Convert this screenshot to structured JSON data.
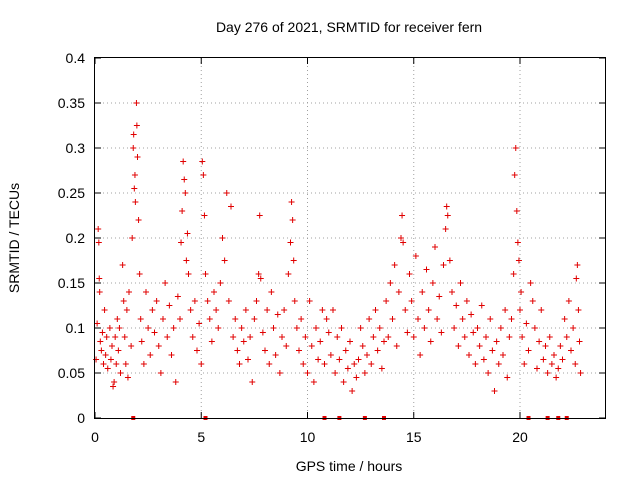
{
  "chart_data": {
    "type": "scatter",
    "title": "Day 276 of 2021, SRMTID for receiver fern",
    "xlabel": "GPS time / hours",
    "ylabel": "SRMTID / TECUs",
    "xlim": [
      0,
      24
    ],
    "ylim": [
      0,
      0.4
    ],
    "x_ticks": [
      0,
      5,
      10,
      15,
      20
    ],
    "x_tick_labels": [
      "0",
      "5",
      "10",
      "15",
      "20"
    ],
    "y_ticks": [
      0,
      0.05,
      0.1,
      0.15,
      0.2,
      0.25,
      0.3,
      0.35,
      0.4
    ],
    "y_tick_labels": [
      "0",
      "0.05",
      "0.1",
      "0.15",
      "0.2",
      "0.25",
      "0.3",
      "0.35",
      "0.4"
    ],
    "grid": true,
    "marker": "+",
    "color": "#e00000",
    "series": [
      {
        "name": "SRMTID",
        "points": [
          [
            0.05,
            0.065
          ],
          [
            0.1,
            0.105
          ],
          [
            0.15,
            0.21
          ],
          [
            0.18,
            0.195
          ],
          [
            0.2,
            0.155
          ],
          [
            0.22,
            0.14
          ],
          [
            0.25,
            0.085
          ],
          [
            0.3,
            0.075
          ],
          [
            0.35,
            0.095
          ],
          [
            0.4,
            0.06
          ],
          [
            0.45,
            0.12
          ],
          [
            0.5,
            0.07
          ],
          [
            0.55,
            0.09
          ],
          [
            0.6,
            0.055
          ],
          [
            0.7,
            0.1
          ],
          [
            0.75,
            0.065
          ],
          [
            0.8,
            0.08
          ],
          [
            0.85,
            0.035
          ],
          [
            0.9,
            0.04
          ],
          [
            0.95,
            0.09
          ],
          [
            1.0,
            0.06
          ],
          [
            1.05,
            0.11
          ],
          [
            1.1,
            0.075
          ],
          [
            1.15,
            0.1
          ],
          [
            1.2,
            0.05
          ],
          [
            1.3,
            0.17
          ],
          [
            1.35,
            0.13
          ],
          [
            1.4,
            0.09
          ],
          [
            1.45,
            0.06
          ],
          [
            1.5,
            0.12
          ],
          [
            1.55,
            0.045
          ],
          [
            1.6,
            0.14
          ],
          [
            1.7,
            0.08
          ],
          [
            1.75,
            0.2
          ],
          [
            1.8,
            0.3
          ],
          [
            1.82,
            0.315
          ],
          [
            1.85,
            0.255
          ],
          [
            1.88,
            0.27
          ],
          [
            1.9,
            0.24
          ],
          [
            1.95,
            0.35
          ],
          [
            1.97,
            0.325
          ],
          [
            2.0,
            0.29
          ],
          [
            2.05,
            0.22
          ],
          [
            2.1,
            0.16
          ],
          [
            2.15,
            0.11
          ],
          [
            2.2,
            0.085
          ],
          [
            2.3,
            0.06
          ],
          [
            2.4,
            0.14
          ],
          [
            2.5,
            0.1
          ],
          [
            2.6,
            0.07
          ],
          [
            2.7,
            0.12
          ],
          [
            2.8,
            0.095
          ],
          [
            2.9,
            0.13
          ],
          [
            3.0,
            0.08
          ],
          [
            3.1,
            0.05
          ],
          [
            3.2,
            0.11
          ],
          [
            3.3,
            0.15
          ],
          [
            3.4,
            0.09
          ],
          [
            3.5,
            0.125
          ],
          [
            3.6,
            0.07
          ],
          [
            3.7,
            0.1
          ],
          [
            3.8,
            0.04
          ],
          [
            3.9,
            0.135
          ],
          [
            4.0,
            0.11
          ],
          [
            4.05,
            0.195
          ],
          [
            4.1,
            0.23
          ],
          [
            4.15,
            0.285
          ],
          [
            4.2,
            0.265
          ],
          [
            4.25,
            0.25
          ],
          [
            4.3,
            0.175
          ],
          [
            4.35,
            0.205
          ],
          [
            4.4,
            0.16
          ],
          [
            4.5,
            0.12
          ],
          [
            4.6,
            0.09
          ],
          [
            4.7,
            0.13
          ],
          [
            4.8,
            0.075
          ],
          [
            4.9,
            0.105
          ],
          [
            5.0,
            0.06
          ],
          [
            5.05,
            0.285
          ],
          [
            5.1,
            0.27
          ],
          [
            5.15,
            0.225
          ],
          [
            5.2,
            0.16
          ],
          [
            5.3,
            0.13
          ],
          [
            5.4,
            0.11
          ],
          [
            5.5,
            0.085
          ],
          [
            5.6,
            0.14
          ],
          [
            5.7,
            0.12
          ],
          [
            5.8,
            0.1
          ],
          [
            5.9,
            0.15
          ],
          [
            6.0,
            0.2
          ],
          [
            6.1,
            0.175
          ],
          [
            6.2,
            0.25
          ],
          [
            6.3,
            0.13
          ],
          [
            6.4,
            0.235
          ],
          [
            6.5,
            0.09
          ],
          [
            6.6,
            0.11
          ],
          [
            6.7,
            0.075
          ],
          [
            6.8,
            0.06
          ],
          [
            6.9,
            0.1
          ],
          [
            7.0,
            0.085
          ],
          [
            7.1,
            0.12
          ],
          [
            7.2,
            0.065
          ],
          [
            7.3,
            0.09
          ],
          [
            7.4,
            0.04
          ],
          [
            7.5,
            0.11
          ],
          [
            7.6,
            0.13
          ],
          [
            7.7,
            0.16
          ],
          [
            7.75,
            0.225
          ],
          [
            7.8,
            0.155
          ],
          [
            7.9,
            0.095
          ],
          [
            8.0,
            0.075
          ],
          [
            8.1,
            0.12
          ],
          [
            8.2,
            0.06
          ],
          [
            8.3,
            0.14
          ],
          [
            8.4,
            0.1
          ],
          [
            8.5,
            0.07
          ],
          [
            8.6,
            0.115
          ],
          [
            8.7,
            0.05
          ],
          [
            8.8,
            0.09
          ],
          [
            8.9,
            0.12
          ],
          [
            9.0,
            0.08
          ],
          [
            9.1,
            0.16
          ],
          [
            9.2,
            0.195
          ],
          [
            9.25,
            0.24
          ],
          [
            9.3,
            0.22
          ],
          [
            9.35,
            0.175
          ],
          [
            9.4,
            0.13
          ],
          [
            9.5,
            0.1
          ],
          [
            9.6,
            0.075
          ],
          [
            9.7,
            0.11
          ],
          [
            9.8,
            0.06
          ],
          [
            9.9,
            0.09
          ],
          [
            10.0,
            0.05
          ],
          [
            10.1,
            0.13
          ],
          [
            10.2,
            0.08
          ],
          [
            10.3,
            0.04
          ],
          [
            10.4,
            0.1
          ],
          [
            10.5,
            0.065
          ],
          [
            10.6,
            0.085
          ],
          [
            10.7,
            0.12
          ],
          [
            10.8,
            0.06
          ],
          [
            10.9,
            0.11
          ],
          [
            11.0,
            0.095
          ],
          [
            11.1,
            0.07
          ],
          [
            11.2,
            0.12
          ],
          [
            11.3,
            0.05
          ],
          [
            11.4,
            0.09
          ],
          [
            11.5,
            0.065
          ],
          [
            11.6,
            0.1
          ],
          [
            11.7,
            0.04
          ],
          [
            11.8,
            0.075
          ],
          [
            11.9,
            0.055
          ],
          [
            12.0,
            0.085
          ],
          [
            12.1,
            0.03
          ],
          [
            12.2,
            0.06
          ],
          [
            12.3,
            0.045
          ],
          [
            12.4,
            0.065
          ],
          [
            12.5,
            0.1
          ],
          [
            12.6,
            0.08
          ],
          [
            12.7,
            0.05
          ],
          [
            12.8,
            0.07
          ],
          [
            12.9,
            0.11
          ],
          [
            13.0,
            0.06
          ],
          [
            13.1,
            0.09
          ],
          [
            13.2,
            0.12
          ],
          [
            13.3,
            0.075
          ],
          [
            13.4,
            0.1
          ],
          [
            13.5,
            0.055
          ],
          [
            13.6,
            0.085
          ],
          [
            13.7,
            0.13
          ],
          [
            13.8,
            0.09
          ],
          [
            13.9,
            0.15
          ],
          [
            14.0,
            0.11
          ],
          [
            14.1,
            0.17
          ],
          [
            14.2,
            0.08
          ],
          [
            14.3,
            0.14
          ],
          [
            14.4,
            0.2
          ],
          [
            14.45,
            0.225
          ],
          [
            14.5,
            0.195
          ],
          [
            14.6,
            0.12
          ],
          [
            14.7,
            0.095
          ],
          [
            14.8,
            0.16
          ],
          [
            14.9,
            0.13
          ],
          [
            15.0,
            0.09
          ],
          [
            15.1,
            0.18
          ],
          [
            15.2,
            0.11
          ],
          [
            15.3,
            0.07
          ],
          [
            15.4,
            0.14
          ],
          [
            15.5,
            0.1
          ],
          [
            15.6,
            0.165
          ],
          [
            15.7,
            0.12
          ],
          [
            15.8,
            0.085
          ],
          [
            15.9,
            0.15
          ],
          [
            16.0,
            0.19
          ],
          [
            16.1,
            0.11
          ],
          [
            16.2,
            0.135
          ],
          [
            16.3,
            0.095
          ],
          [
            16.4,
            0.17
          ],
          [
            16.5,
            0.21
          ],
          [
            16.55,
            0.235
          ],
          [
            16.6,
            0.225
          ],
          [
            16.7,
            0.175
          ],
          [
            16.8,
            0.14
          ],
          [
            16.9,
            0.1
          ],
          [
            17.0,
            0.125
          ],
          [
            17.1,
            0.08
          ],
          [
            17.2,
            0.15
          ],
          [
            17.3,
            0.11
          ],
          [
            17.4,
            0.09
          ],
          [
            17.5,
            0.13
          ],
          [
            17.6,
            0.07
          ],
          [
            17.7,
            0.115
          ],
          [
            17.8,
            0.095
          ],
          [
            17.9,
            0.06
          ],
          [
            18.0,
            0.1
          ],
          [
            18.1,
            0.08
          ],
          [
            18.2,
            0.125
          ],
          [
            18.3,
            0.065
          ],
          [
            18.4,
            0.09
          ],
          [
            18.5,
            0.05
          ],
          [
            18.6,
            0.11
          ],
          [
            18.7,
            0.075
          ],
          [
            18.8,
            0.03
          ],
          [
            18.9,
            0.085
          ],
          [
            19.0,
            0.06
          ],
          [
            19.1,
            0.1
          ],
          [
            19.2,
            0.07
          ],
          [
            19.3,
            0.12
          ],
          [
            19.4,
            0.045
          ],
          [
            19.5,
            0.09
          ],
          [
            19.6,
            0.11
          ],
          [
            19.7,
            0.16
          ],
          [
            19.75,
            0.27
          ],
          [
            19.8,
            0.3
          ],
          [
            19.85,
            0.23
          ],
          [
            19.9,
            0.195
          ],
          [
            19.95,
            0.175
          ],
          [
            20.0,
            0.12
          ],
          [
            20.05,
            0.14
          ],
          [
            20.1,
            0.09
          ],
          [
            20.2,
            0.06
          ],
          [
            20.3,
            0.105
          ],
          [
            20.4,
            0.075
          ],
          [
            20.5,
            0.15
          ],
          [
            20.6,
            0.13
          ],
          [
            20.7,
            0.1
          ],
          [
            20.8,
            0.055
          ],
          [
            20.9,
            0.085
          ],
          [
            21.0,
            0.12
          ],
          [
            21.1,
            0.065
          ],
          [
            21.2,
            0.08
          ],
          [
            21.3,
            0.05
          ],
          [
            21.4,
            0.09
          ],
          [
            21.5,
            0.06
          ],
          [
            21.6,
            0.07
          ],
          [
            21.7,
            0.045
          ],
          [
            21.8,
            0.055
          ],
          [
            21.9,
            0.08
          ],
          [
            22.0,
            0.065
          ],
          [
            22.1,
            0.11
          ],
          [
            22.2,
            0.09
          ],
          [
            22.3,
            0.13
          ],
          [
            22.4,
            0.075
          ],
          [
            22.5,
            0.1
          ],
          [
            22.6,
            0.06
          ],
          [
            22.65,
            0.155
          ],
          [
            22.7,
            0.17
          ],
          [
            22.75,
            0.12
          ],
          [
            22.8,
            0.085
          ],
          [
            22.85,
            0.05
          ]
        ]
      }
    ],
    "baseline_markers_x": [
      1.8,
      5.2,
      10.8,
      11.5,
      12.7,
      13.6,
      20.4,
      21.3,
      21.8,
      22.2
    ]
  }
}
